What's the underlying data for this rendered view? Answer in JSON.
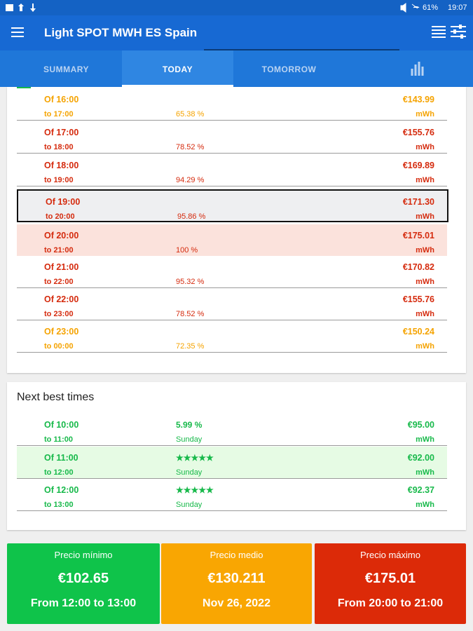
{
  "status_bar": {
    "battery": "61%",
    "time": "19:07"
  },
  "app_bar": {
    "title": "Light SPOT MWH ES Spain"
  },
  "tabs": [
    "SUMMARY",
    "TODAY",
    "TOMORROW"
  ],
  "hours": [
    {
      "from": "Of 16:00",
      "to": "to 17:00",
      "percent": "65.38 %",
      "price": "€143.99",
      "unit": "mWh",
      "color": "#f5a300"
    },
    {
      "from": "Of 17:00",
      "to": "to 18:00",
      "percent": "78.52 %",
      "price": "€155.76",
      "unit": "mWh",
      "color": "#d52b0e"
    },
    {
      "from": "Of 18:00",
      "to": "to 19:00",
      "percent": "94.29 %",
      "price": "€169.89",
      "unit": "mWh",
      "color": "#d52b0e"
    },
    {
      "from": "Of 19:00",
      "to": "to 20:00",
      "percent": "95.86 %",
      "price": "€171.30",
      "unit": "mWh",
      "color": "#d52b0e",
      "background": "#eeeff1",
      "selected": true
    },
    {
      "from": "Of 20:00",
      "to": "to 21:00",
      "percent": "100 %",
      "price": "€175.01",
      "unit": "mWh",
      "color": "#d52b0e",
      "background": "#fbe2dc"
    },
    {
      "from": "Of 21:00",
      "to": "to 22:00",
      "percent": "95.32 %",
      "price": "€170.82",
      "unit": "mWh",
      "color": "#d52b0e"
    },
    {
      "from": "Of 22:00",
      "to": "to 23:00",
      "percent": "78.52 %",
      "price": "€155.76",
      "unit": "mWh",
      "color": "#d52b0e"
    },
    {
      "from": "Of 23:00",
      "to": "to 00:00",
      "percent": "72.35 %",
      "price": "€150.24",
      "unit": "mWh",
      "color": "#f5a300"
    }
  ],
  "best": {
    "title": "Next best times",
    "rows": [
      {
        "from": "Of 10:00",
        "to": "to 11:00",
        "rating": "5.99 %",
        "day": "Sunday",
        "price": "€95.00",
        "unit": "mWh",
        "color": "#17b94a"
      },
      {
        "from": "Of 11:00",
        "to": "to 12:00",
        "rating": "★★★★★",
        "day": "Sunday",
        "price": "€92.00",
        "unit": "mWh",
        "color": "#17b94a",
        "background": "#e6fbe4"
      },
      {
        "from": "Of 12:00",
        "to": "to 13:00",
        "rating": "★★★★★",
        "day": "Sunday",
        "price": "€92.37",
        "unit": "mWh",
        "color": "#17b94a"
      }
    ]
  },
  "summary": [
    {
      "label": "Precio mínimo",
      "value": "€102.65",
      "detail": "From 12:00 to 13:00",
      "color": "#0fc34a"
    },
    {
      "label": "Precio medio",
      "value": "€130.211",
      "detail": "Nov 26, 2022",
      "color": "#f9a602"
    },
    {
      "label": "Precio máximo",
      "value": "€175.01",
      "detail": "From 20:00 to 21:00",
      "color": "#dc2a08"
    }
  ]
}
